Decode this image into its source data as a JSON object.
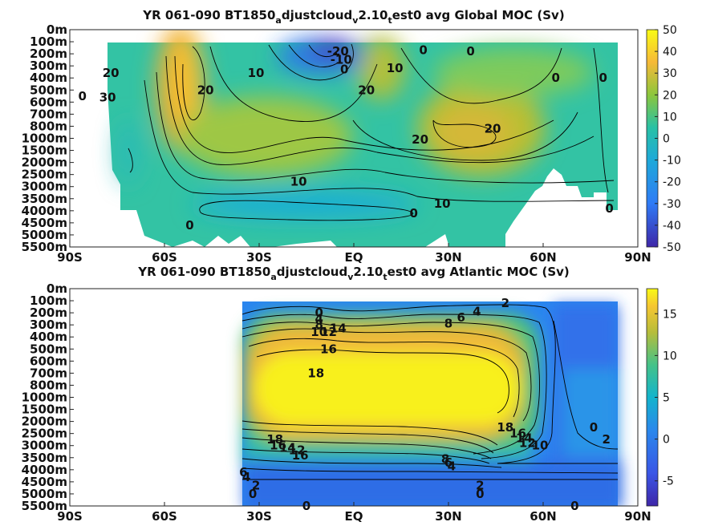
{
  "chart_data": [
    {
      "type": "heatmap",
      "title_parts": [
        "YR 061-090 BT1850",
        "a",
        "djustcloud",
        "v",
        "2.10",
        "t",
        "est0 avg  Global MOC (Sv)"
      ],
      "x_ticks": [
        "90S",
        "60S",
        "30S",
        "EQ",
        "30N",
        "60N",
        "90N"
      ],
      "x_values": [
        -90,
        -60,
        -30,
        0,
        30,
        60,
        90
      ],
      "y_ticks": [
        "0m",
        "100m",
        "200m",
        "300m",
        "400m",
        "500m",
        "600m",
        "700m",
        "800m",
        "1000m",
        "1500m",
        "2000m",
        "2500m",
        "3000m",
        "3500m",
        "4000m",
        "4500m",
        "5000m",
        "5500m"
      ],
      "colorbar_ticks": [
        "50",
        "40",
        "30",
        "20",
        "10",
        "0",
        "-10",
        "-20",
        "-30",
        "-40",
        "-50"
      ],
      "colorbar_range": [
        -50,
        50
      ],
      "contour_labels": [
        {
          "text": "-20",
          "lat": -5,
          "level": 1.8
        },
        {
          "text": "-10",
          "lat": -4,
          "level": 2.5
        },
        {
          "text": "0",
          "lat": -3,
          "level": 3.3
        },
        {
          "text": "0",
          "lat": 22,
          "level": 1.7
        },
        {
          "text": "10",
          "lat": -31,
          "level": 3.6
        },
        {
          "text": "10",
          "lat": -17.5,
          "level": 12.6
        },
        {
          "text": "10",
          "lat": 13,
          "level": 3.2
        },
        {
          "text": "10",
          "lat": 28,
          "level": 14.4
        },
        {
          "text": "20",
          "lat": -77,
          "level": 3.6
        },
        {
          "text": "20",
          "lat": -47,
          "level": 5.0
        },
        {
          "text": "20",
          "lat": 4,
          "level": 5.0
        },
        {
          "text": "20",
          "lat": 21,
          "level": 9.1
        },
        {
          "text": "20",
          "lat": 44,
          "level": 8.2
        },
        {
          "text": "30",
          "lat": -78,
          "level": 5.6
        },
        {
          "text": "0",
          "lat": -86,
          "level": 5.5
        },
        {
          "text": "0",
          "lat": 37,
          "level": 1.8
        },
        {
          "text": "0",
          "lat": 64,
          "level": 4.0
        },
        {
          "text": "0",
          "lat": 79,
          "level": 4.0
        },
        {
          "text": "0",
          "lat": -52,
          "level": 16.2
        },
        {
          "text": "0",
          "lat": 19,
          "level": 15.2
        },
        {
          "text": "0",
          "lat": 81,
          "level": 14.8
        }
      ]
    },
    {
      "type": "heatmap",
      "title_parts": [
        "YR 061-090 BT1850",
        "a",
        "djustcloud",
        "v",
        "2.10",
        "t",
        "est0 avg  Atlantic MOC (Sv)"
      ],
      "x_ticks": [
        "90S",
        "60S",
        "30S",
        "EQ",
        "30N",
        "60N",
        "90N"
      ],
      "x_values": [
        -90,
        -60,
        -30,
        0,
        30,
        60,
        90
      ],
      "y_ticks": [
        "0m",
        "100m",
        "200m",
        "300m",
        "400m",
        "500m",
        "600m",
        "700m",
        "800m",
        "1000m",
        "1500m",
        "2000m",
        "2500m",
        "3000m",
        "3500m",
        "4000m",
        "4500m",
        "5000m",
        "5500m"
      ],
      "colorbar_ticks": [
        "15",
        "10",
        "5",
        "0",
        "-5"
      ],
      "colorbar_range": [
        -8,
        18
      ],
      "contour_labels": [
        {
          "text": "0",
          "lat": -11,
          "level": 2.0
        },
        {
          "text": "4",
          "lat": -11,
          "level": 2.5
        },
        {
          "text": "8",
          "lat": -11,
          "level": 3.0
        },
        {
          "text": "10",
          "lat": -11,
          "level": 3.6
        },
        {
          "text": "12",
          "lat": -8,
          "level": 3.6
        },
        {
          "text": "14",
          "lat": -5,
          "level": 3.3
        },
        {
          "text": "16",
          "lat": -8,
          "level": 5.0
        },
        {
          "text": "18",
          "lat": -12,
          "level": 7.0
        },
        {
          "text": "2",
          "lat": 48,
          "level": 1.2
        },
        {
          "text": "4",
          "lat": 39,
          "level": 1.9
        },
        {
          "text": "6",
          "lat": 34,
          "level": 2.4
        },
        {
          "text": "8",
          "lat": 30,
          "level": 2.9
        },
        {
          "text": "18",
          "lat": 48,
          "level": 11.5
        },
        {
          "text": "16",
          "lat": 52,
          "level": 12.0
        },
        {
          "text": "14",
          "lat": 54,
          "level": 12.4
        },
        {
          "text": "12",
          "lat": 55,
          "level": 12.8
        },
        {
          "text": "10",
          "lat": 59,
          "level": 13.0
        },
        {
          "text": "18",
          "lat": -25,
          "level": 12.5
        },
        {
          "text": "16",
          "lat": -24,
          "level": 13.0
        },
        {
          "text": "14",
          "lat": -21,
          "level": 13.2
        },
        {
          "text": "12",
          "lat": -18,
          "level": 13.4
        },
        {
          "text": "16",
          "lat": -17,
          "level": 13.8
        },
        {
          "text": "8",
          "lat": 29,
          "level": 14.1
        },
        {
          "text": "6",
          "lat": 30,
          "level": 14.4
        },
        {
          "text": "4",
          "lat": 31,
          "level": 14.7
        },
        {
          "text": "6",
          "lat": -35,
          "level": 15.2
        },
        {
          "text": "4",
          "lat": -34,
          "level": 15.6
        },
        {
          "text": "2",
          "lat": -31,
          "level": 16.3
        },
        {
          "text": "0",
          "lat": -32,
          "level": 17.0
        },
        {
          "text": "2",
          "lat": 40,
          "level": 16.3
        },
        {
          "text": "0",
          "lat": 40,
          "level": 17.0
        },
        {
          "text": "0",
          "lat": 76,
          "level": 11.5
        },
        {
          "text": "2",
          "lat": 80,
          "level": 12.5
        },
        {
          "text": "0",
          "lat": -15,
          "level": 18.0
        },
        {
          "text": "0",
          "lat": 70,
          "level": 18.0
        }
      ]
    }
  ]
}
